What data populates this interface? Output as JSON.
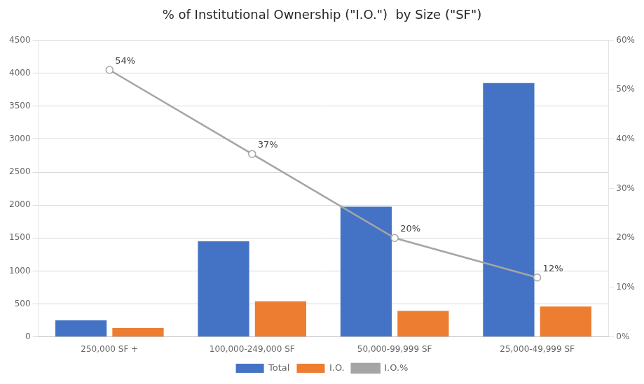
{
  "chart_data": {
    "type": "bar",
    "title": "% of Institutional Ownership (\"I.O.\")  by Size (\"SF\")",
    "categories": [
      "250,000 SF +",
      "100,000-249,000 SF",
      "50,000-99,999 SF",
      "25,000-49,999 SF"
    ],
    "series": [
      {
        "name": "Total",
        "color": "#4472C4",
        "values": [
          250,
          1450,
          1975,
          3850
        ]
      },
      {
        "name": "I.O.",
        "color": "#ED7D31",
        "values": [
          135,
          540,
          395,
          460
        ]
      },
      {
        "name": "I.O.%",
        "type": "line",
        "axis": "y2",
        "color": "#A5A5A5",
        "marker": "circle",
        "values": [
          0.54,
          0.37,
          0.2,
          0.12
        ],
        "value_labels": [
          "54%",
          "37%",
          "20%",
          "12%"
        ],
        "data_labels": true
      }
    ],
    "ylim": [
      0,
      4500
    ],
    "yticks": [
      0,
      500,
      1000,
      1500,
      2000,
      2500,
      3000,
      3500,
      4000,
      4500
    ],
    "y2lim": [
      0,
      0.6
    ],
    "y2ticks": [
      {
        "value": 0.0,
        "label": "0%"
      },
      {
        "value": 0.1,
        "label": "10%"
      },
      {
        "value": 0.2,
        "label": "20%"
      },
      {
        "value": 0.3,
        "label": "30%"
      },
      {
        "value": 0.4,
        "label": "40%"
      },
      {
        "value": 0.5,
        "label": "50%"
      },
      {
        "value": 0.6,
        "label": "60%"
      }
    ],
    "grid": true,
    "legend": "bottom"
  }
}
